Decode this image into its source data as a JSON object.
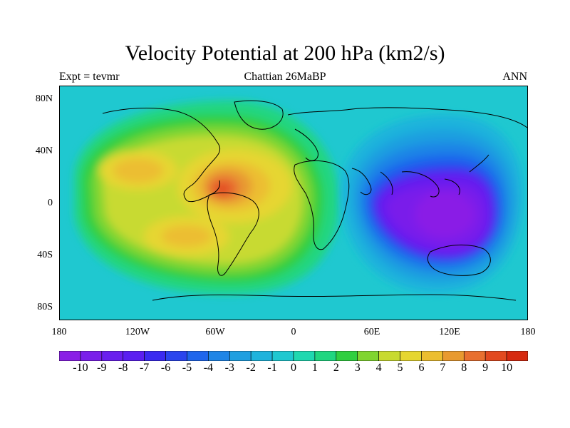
{
  "title": "Velocity Potential at 200 hPa (km2/s)",
  "subtitle_left": "Expt = tevmr",
  "subtitle_center": "Chattian  26MaBP",
  "subtitle_right": "ANN",
  "axes": {
    "lat_ticks": [
      "80N",
      "40N",
      "0",
      "40S",
      "80S"
    ],
    "lon_ticks": [
      "180",
      "120W",
      "60W",
      "0",
      "60E",
      "120E",
      "180"
    ]
  },
  "colorbar": {
    "labels": [
      "-10",
      "-9",
      "-8",
      "-7",
      "-6",
      "-5",
      "-4",
      "-3",
      "-2",
      "-1",
      "0",
      "1",
      "2",
      "3",
      "4",
      "5",
      "6",
      "7",
      "8",
      "9",
      "10"
    ],
    "colors": [
      "#8a1fe6",
      "#7a1fea",
      "#6a1fee",
      "#5b1ff0",
      "#3a2af0",
      "#2a45ee",
      "#1f66ec",
      "#1f85e6",
      "#1f9fe0",
      "#1fb3dc",
      "#1fc8d0",
      "#1fd8b0",
      "#20d680",
      "#30cf40",
      "#80d530",
      "#c8da30",
      "#e6d630",
      "#ecbe30",
      "#e89a30",
      "#e87030",
      "#e24a20",
      "#d62a10"
    ]
  },
  "field_centers": [
    {
      "name": "western-hemisphere-maximum",
      "lon": -50,
      "lat": 10,
      "value": 9.5
    },
    {
      "name": "north-pacific-maximum",
      "lon": -115,
      "lat": 20,
      "value": 7
    },
    {
      "name": "south-pacific-maximum",
      "lon": -90,
      "lat": -20,
      "value": 7
    },
    {
      "name": "indo-pacific-minimum",
      "lon": 100,
      "lat": 0,
      "value": -10
    }
  ],
  "map_colors": {
    "background": "#1fc8d0",
    "outer_ring": "#20d680",
    "coastline": "#000000"
  }
}
